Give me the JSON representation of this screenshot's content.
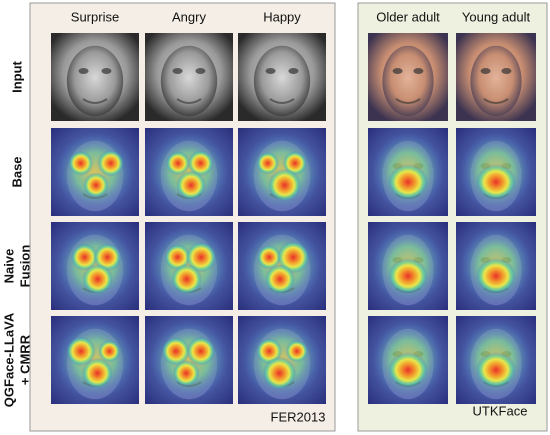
{
  "rows": [
    [
      "Input"
    ],
    [
      "Base"
    ],
    [
      "Naive",
      "Fusion"
    ],
    [
      "QGFace-LLaVA",
      "+ CMRR"
    ]
  ],
  "fer2013": {
    "columns": [
      "Surprise",
      "Angry",
      "Happy"
    ],
    "dataset": "FER2013"
  },
  "utkface": {
    "columns": [
      "Older adult",
      "Young adult"
    ],
    "dataset": "UTKFace"
  }
}
